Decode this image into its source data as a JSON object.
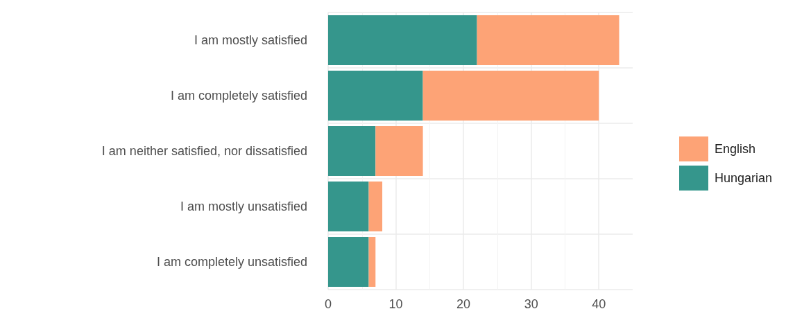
{
  "chart_data": {
    "type": "bar",
    "orientation": "horizontal",
    "stacked": true,
    "categories": [
      "I am mostly satisfied",
      "I am completely satisfied",
      "I am neither satisfied, nor dissatisfied",
      "I am mostly unsatisfied",
      "I am completely unsatisfied"
    ],
    "series": [
      {
        "name": "Hungarian",
        "color": "#35968c",
        "values": [
          22,
          14,
          7,
          6,
          6
        ]
      },
      {
        "name": "English",
        "color": "#fda376",
        "values": [
          21,
          26,
          7,
          2,
          1
        ]
      }
    ],
    "xlim": [
      0,
      45
    ],
    "xticks": [
      0,
      10,
      20,
      30,
      40
    ],
    "grid": true,
    "legend": "right"
  }
}
